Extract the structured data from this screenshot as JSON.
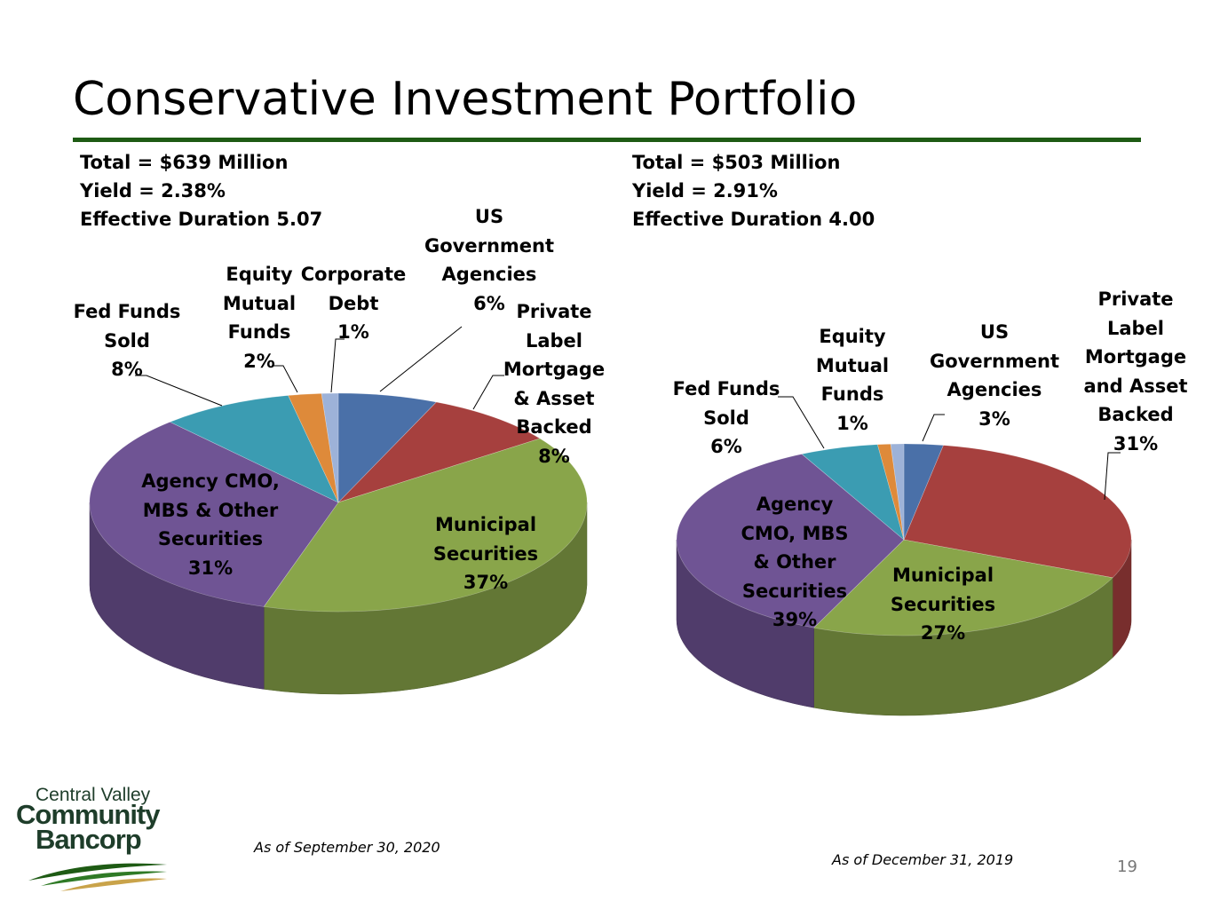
{
  "page": {
    "title": "Conservative Investment Portfolio",
    "page_number": "19"
  },
  "logo": {
    "line1": "Central Valley",
    "line2": "Community",
    "line3": "Bancorp"
  },
  "colors": {
    "title_rule": "#1e5b14",
    "us_government_agencies": "#4a70a8",
    "private_label": "#a6403e",
    "municipal": "#89a54a",
    "agency_cmo": "#6f5494",
    "fed_funds": "#3b9cb2",
    "equity_mutual": "#de8a3a",
    "corporate_debt": "#9db2d8"
  },
  "left": {
    "stats": [
      "Total = $639 Million",
      "Yield = 2.38%",
      "Effective Duration 5.07"
    ],
    "as_of": "As of September 30, 2020"
  },
  "right": {
    "stats": [
      "Total = $503 Million",
      "Yield = 2.91%",
      "Effective Duration 4.00"
    ],
    "as_of": "As of December 31, 2019"
  },
  "chart_data": [
    {
      "type": "pie",
      "style": "3d",
      "slices": [
        {
          "label_lines": [
            "US",
            "Government",
            "Agencies",
            "6%"
          ],
          "value": 6,
          "color": "#4a70a8"
        },
        {
          "label_lines": [
            "Private",
            "Label",
            "Mortgage",
            "& Asset",
            "Backed",
            "8%"
          ],
          "value": 8,
          "color": "#a6403e"
        },
        {
          "label_lines": [
            "Municipal",
            "Securities",
            "37%"
          ],
          "value": 37,
          "color": "#89a54a"
        },
        {
          "label_lines": [
            "Agency CMO,",
            "MBS & Other",
            "Securities",
            "31%"
          ],
          "value": 31,
          "color": "#6f5494"
        },
        {
          "label_lines": [
            "Fed Funds",
            "Sold",
            "8%"
          ],
          "value": 8,
          "color": "#3b9cb2"
        },
        {
          "label_lines": [
            "Equity",
            "Mutual",
            "Funds",
            "2%"
          ],
          "value": 2,
          "color": "#de8a3a"
        },
        {
          "label_lines": [
            "Corporate",
            "Debt",
            "1%"
          ],
          "value": 1,
          "color": "#9db2d8"
        }
      ]
    },
    {
      "type": "pie",
      "style": "3d",
      "slices": [
        {
          "label_lines": [
            "US",
            "Government",
            "Agencies",
            "3%"
          ],
          "value": 3,
          "color": "#4a70a8"
        },
        {
          "label_lines": [
            "Private",
            "Label",
            "Mortgage",
            "and Asset",
            "Backed",
            "31%"
          ],
          "value": 31,
          "color": "#a6403e"
        },
        {
          "label_lines": [
            "Municipal",
            "Securities",
            "27%"
          ],
          "value": 27,
          "color": "#89a54a"
        },
        {
          "label_lines": [
            "Agency",
            "CMO, MBS",
            "& Other",
            "Securities",
            "39%"
          ],
          "value": 39,
          "color": "#6f5494"
        },
        {
          "label_lines": [
            "Fed Funds",
            "Sold",
            "6%"
          ],
          "value": 6,
          "color": "#3b9cb2"
        },
        {
          "label_lines": [
            "Equity",
            "Mutual",
            "Funds",
            "1%"
          ],
          "value": 1,
          "color": "#de8a3a"
        },
        {
          "label_lines": [],
          "value": 1,
          "color": "#9db2d8"
        }
      ]
    }
  ]
}
